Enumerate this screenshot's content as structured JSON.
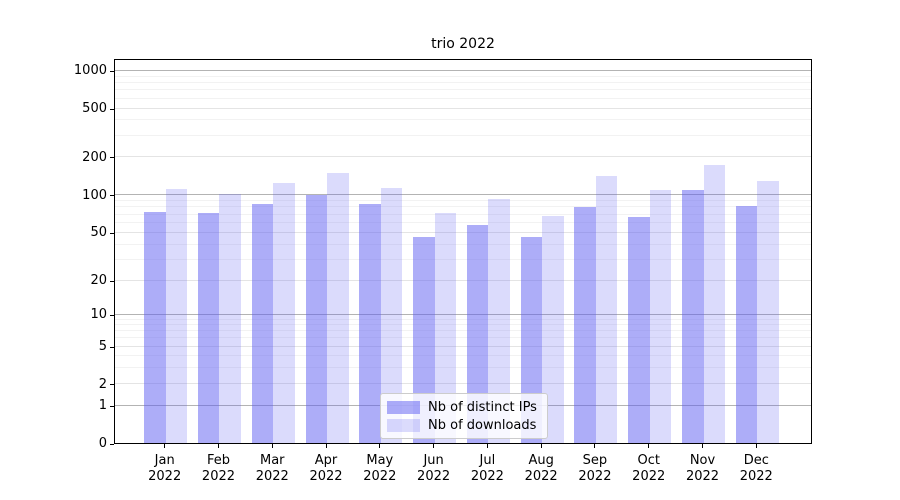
{
  "chart_data": {
    "type": "bar",
    "title": "trio 2022",
    "categories": [
      "Jan 2022",
      "Feb 2022",
      "Mar 2022",
      "Apr 2022",
      "May 2022",
      "Jun 2022",
      "Jul 2022",
      "Aug 2022",
      "Sep 2022",
      "Oct 2022",
      "Nov 2022",
      "Dec 2022"
    ],
    "series": [
      {
        "name": "Nb of distinct IPs",
        "color": "rgba(92,92,242,0.5)",
        "values": [
          73,
          71,
          84,
          99,
          84,
          46,
          57,
          46,
          80,
          66,
          110,
          81
        ]
      },
      {
        "name": "Nb of downloads",
        "color": "rgba(92,92,242,0.22)",
        "values": [
          111,
          102,
          125,
          150,
          114,
          72,
          92,
          68,
          140,
          110,
          174,
          128
        ]
      }
    ],
    "xlabel": "",
    "ylabel": "",
    "yscale": "log-like (linear below 1)",
    "yticks": [
      0,
      1,
      2,
      5,
      10,
      20,
      50,
      100,
      200,
      500,
      1000
    ],
    "decade_ticks": [
      1,
      10,
      100,
      1000
    ],
    "minor_gridlines": [
      3,
      4,
      6,
      7,
      8,
      9,
      30,
      40,
      60,
      70,
      80,
      90,
      300,
      400,
      600,
      700,
      800,
      900
    ],
    "scale_anchors": [
      [
        0,
        0
      ],
      [
        1,
        0.0977
      ],
      [
        2,
        0.154
      ],
      [
        5,
        0.2509
      ],
      [
        10,
        0.3345
      ],
      [
        20,
        0.4228
      ],
      [
        50,
        0.5468
      ],
      [
        100,
        0.6449
      ],
      [
        200,
        0.7429
      ],
      [
        500,
        0.8701
      ],
      [
        1000,
        0.9678
      ]
    ],
    "grid_on": true,
    "legend_position": "lower center",
    "colors": {
      "grid_major": "#b3b3b3",
      "grid_mid": "#e4e4e4",
      "grid_minor": "#f2f2f2",
      "spine": "#000000",
      "text": "#000000",
      "background": "#ffffff"
    }
  }
}
